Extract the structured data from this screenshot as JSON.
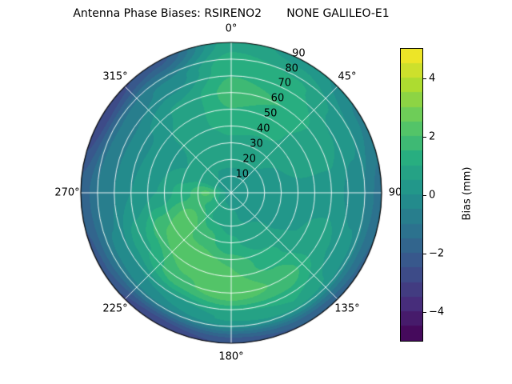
{
  "title": "Antenna Phase Biases: RSIRENO2       NONE GALILEO-E1",
  "chart_data": {
    "type": "heatmap",
    "projection": "polar",
    "title": "Antenna Phase Biases: RSIRENO2       NONE GALILEO-E1",
    "azimuth_deg": [
      0,
      30,
      60,
      90,
      120,
      150,
      180,
      210,
      240,
      270,
      300,
      330
    ],
    "zenith_deg": [
      0,
      15,
      30,
      45,
      60,
      75,
      90
    ],
    "bias_mm": [
      [
        0.3,
        0.5,
        0.9,
        1.4,
        1.7,
        1.4,
        0.8
      ],
      [
        0.3,
        0.5,
        0.8,
        1.2,
        1.5,
        1.1,
        0.3
      ],
      [
        0.3,
        0.4,
        0.5,
        0.7,
        0.8,
        0.3,
        -0.6
      ],
      [
        0.3,
        0.3,
        0.4,
        0.4,
        0.3,
        -0.3,
        -1.2
      ],
      [
        0.3,
        0.3,
        0.4,
        0.5,
        0.7,
        0.2,
        -1.6
      ],
      [
        0.3,
        0.4,
        0.7,
        1.2,
        1.9,
        1.0,
        -2.0
      ],
      [
        0.3,
        0.6,
        1.1,
        2.0,
        2.4,
        0.6,
        -2.4
      ],
      [
        0.3,
        0.8,
        1.7,
        2.5,
        1.9,
        0.0,
        -3.0
      ],
      [
        0.3,
        1.4,
        2.3,
        2.0,
        0.9,
        -0.4,
        -2.2
      ],
      [
        0.3,
        2.1,
        1.2,
        0.5,
        0.0,
        -0.7,
        -1.8
      ],
      [
        0.3,
        0.6,
        0.5,
        0.3,
        -0.1,
        -0.9,
        -3.0
      ],
      [
        0.3,
        0.5,
        0.6,
        0.8,
        0.6,
        -0.4,
        -2.2
      ]
    ],
    "vmin": -5,
    "vmax": 5,
    "level_step": 0.5,
    "colormap": "viridis",
    "colormap_stops": [
      "#440154",
      "#472d7b",
      "#3b528b",
      "#2c728e",
      "#21918c",
      "#28ae80",
      "#5ec962",
      "#addc30",
      "#fde725"
    ],
    "grid": true,
    "r_label_angle_deg": 25,
    "theta_ticks": [
      {
        "angle_deg": 0,
        "label": "0°"
      },
      {
        "angle_deg": 45,
        "label": "45°"
      },
      {
        "angle_deg": 90,
        "label": "90"
      },
      {
        "angle_deg": 135,
        "label": "135°"
      },
      {
        "angle_deg": 180,
        "label": "180°"
      },
      {
        "angle_deg": 225,
        "label": "225°"
      },
      {
        "angle_deg": 270,
        "label": "270°"
      },
      {
        "angle_deg": 315,
        "label": "315°"
      }
    ],
    "r_ticks": [
      {
        "zenith_deg": 10,
        "label": "10"
      },
      {
        "zenith_deg": 20,
        "label": "20"
      },
      {
        "zenith_deg": 30,
        "label": "30"
      },
      {
        "zenith_deg": 40,
        "label": "40"
      },
      {
        "zenith_deg": 50,
        "label": "50"
      },
      {
        "zenith_deg": 60,
        "label": "60"
      },
      {
        "zenith_deg": 70,
        "label": "70"
      },
      {
        "zenith_deg": 80,
        "label": "80"
      },
      {
        "zenith_deg": 90,
        "label": "90"
      }
    ],
    "colorbar": {
      "label": "Bias (mm)",
      "ticks": [
        {
          "value": 4,
          "label": "4"
        },
        {
          "value": 2,
          "label": "2"
        },
        {
          "value": 0,
          "label": "0"
        },
        {
          "value": -2,
          "label": "−2"
        },
        {
          "value": -4,
          "label": "−4"
        }
      ]
    }
  }
}
